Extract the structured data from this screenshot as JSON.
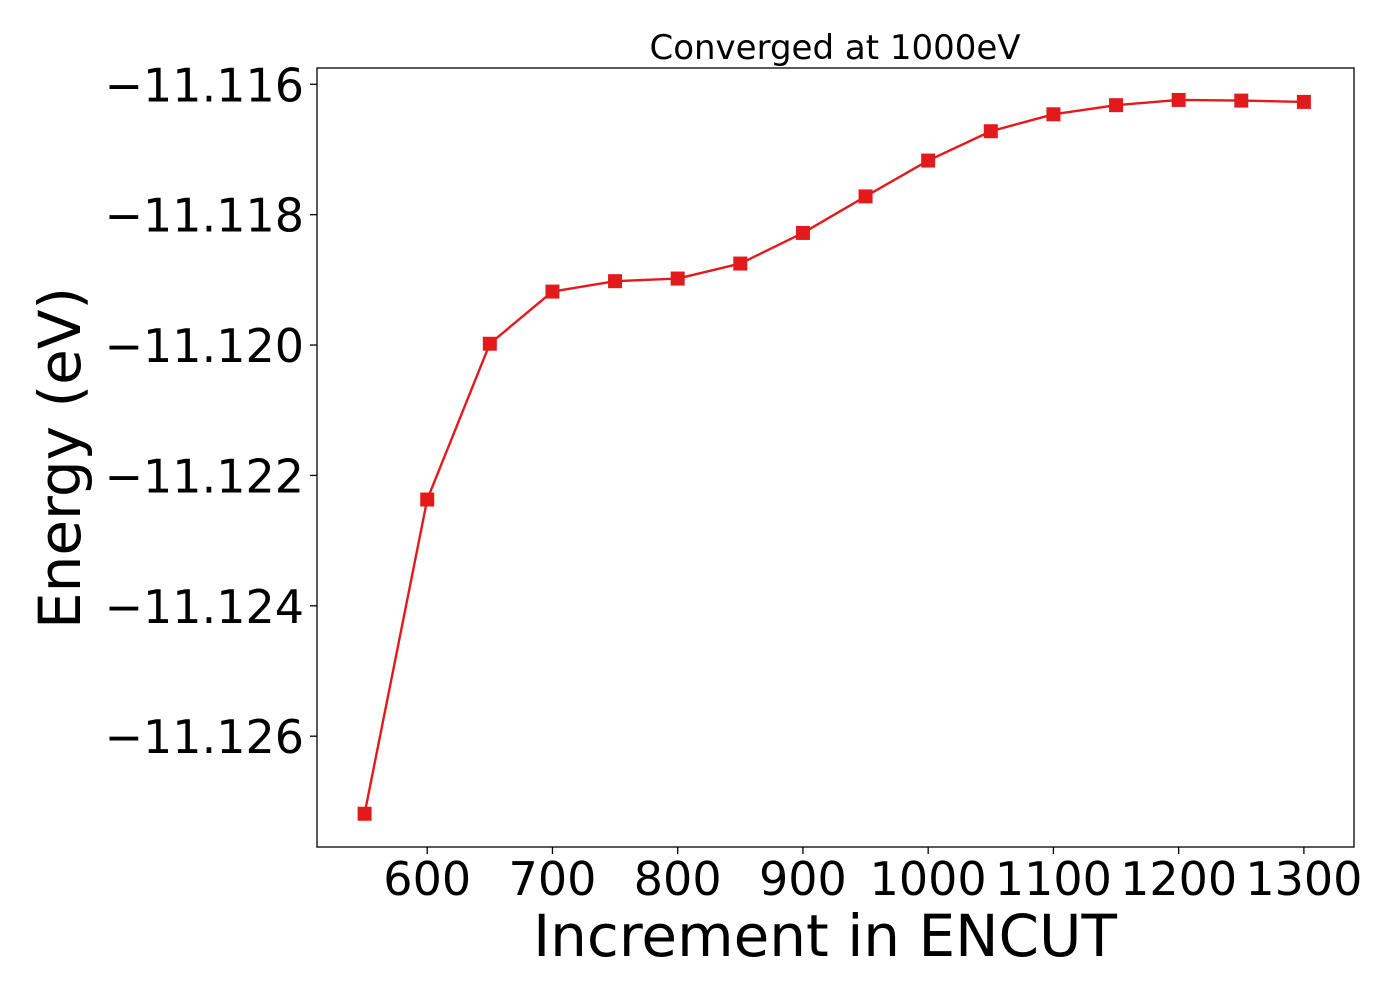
{
  "chart_data": {
    "type": "line",
    "title": "Converged at 1000eV",
    "xlabel": "Increment in ENCUT",
    "ylabel": "Energy (eV)",
    "x": [
      550,
      600,
      650,
      700,
      750,
      800,
      850,
      900,
      950,
      1000,
      1050,
      1100,
      1150,
      1200,
      1250,
      1300
    ],
    "series": [
      {
        "values": [
          -11.12719,
          -11.12237,
          -11.11998,
          -11.11918,
          -11.11902,
          -11.11898,
          -11.11875,
          -11.11828,
          -11.11772,
          -11.11717,
          -11.11672,
          -11.11646,
          -11.11632,
          -11.11624,
          -11.11625,
          -11.11627
        ],
        "color": "#e31a1c",
        "marker": "square"
      }
    ],
    "xlim": [
      512,
      1340
    ],
    "ylim": [
      -11.1277,
      -11.11575
    ],
    "xticks": [
      600,
      700,
      800,
      900,
      1000,
      1100,
      1200,
      1300
    ],
    "xtick_labels": [
      "600",
      "700",
      "800",
      "900",
      "1000",
      "1100",
      "1200",
      "1300"
    ],
    "yticks": [
      -11.126,
      -11.124,
      -11.122,
      -11.12,
      -11.118,
      -11.116
    ],
    "ytick_labels": [
      "−11.126",
      "−11.124",
      "−11.122",
      "−11.120",
      "−11.118",
      "−11.116"
    ],
    "grid": false,
    "legend": "none"
  }
}
